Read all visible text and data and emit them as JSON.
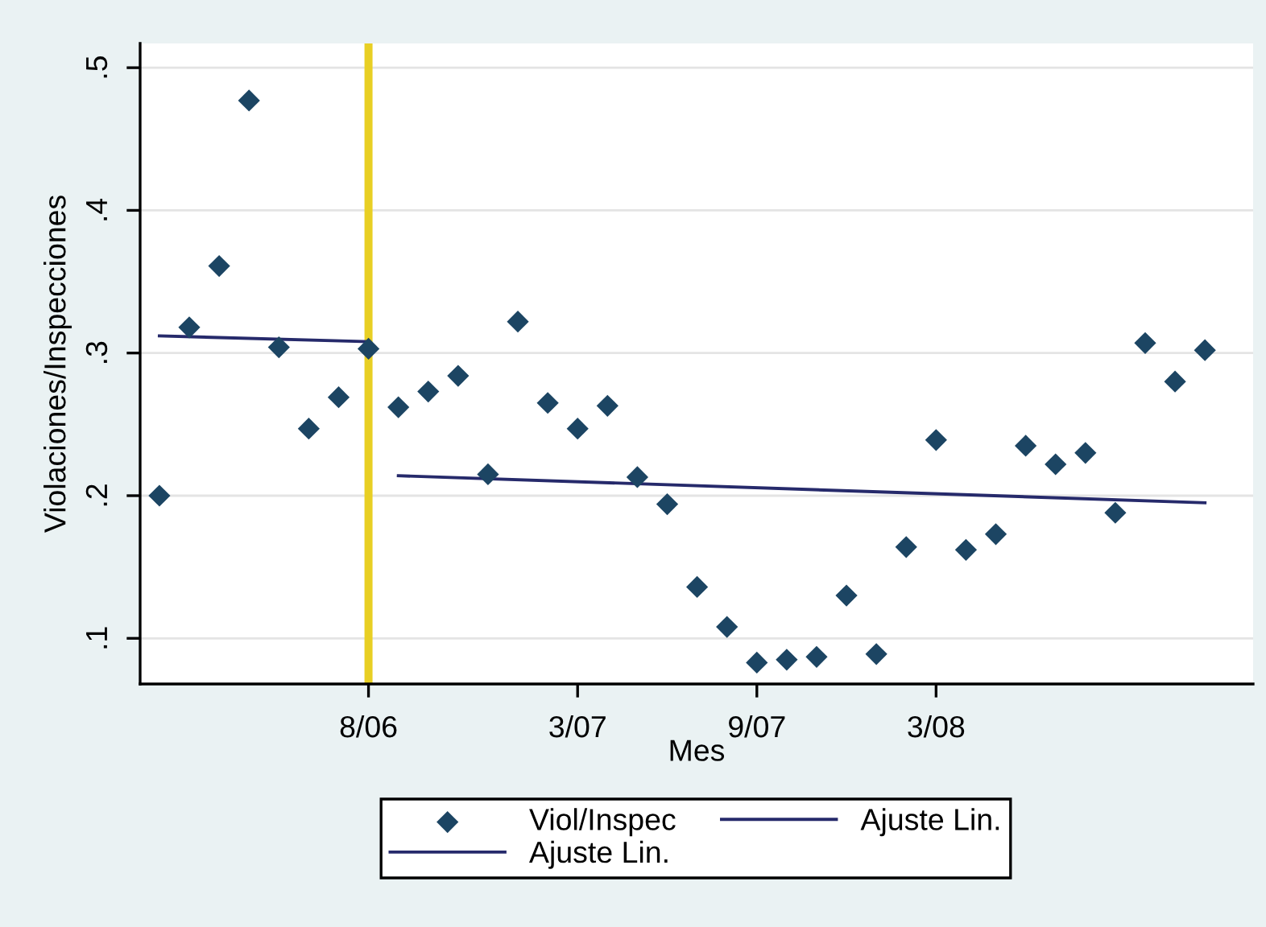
{
  "chart_data": {
    "type": "scatter",
    "xlabel": "Mes",
    "ylabel": "Violaciones/Inspecciones",
    "series": [
      {
        "name": "Viol/Inspec",
        "marker": "diamond",
        "color": "#1c4563",
        "x": [
          "2006-01",
          "2006-02",
          "2006-03",
          "2006-04",
          "2006-05",
          "2006-06",
          "2006-07",
          "2006-08",
          "2006-09",
          "2006-10",
          "2006-11",
          "2006-12",
          "2007-01",
          "2007-02",
          "2007-03",
          "2007-04",
          "2007-05",
          "2007-06",
          "2007-07",
          "2007-08",
          "2007-09",
          "2007-10",
          "2007-11",
          "2007-12",
          "2008-01",
          "2008-02",
          "2008-03",
          "2008-04",
          "2008-05",
          "2008-06",
          "2008-07",
          "2008-08",
          "2008-09",
          "2008-10",
          "2008-11",
          "2008-12"
        ],
        "values": [
          0.2,
          0.318,
          0.361,
          0.477,
          0.304,
          0.247,
          0.269,
          0.303,
          0.262,
          0.273,
          0.284,
          0.215,
          0.322,
          0.265,
          0.247,
          0.263,
          0.213,
          0.194,
          0.136,
          0.108,
          0.083,
          0.085,
          0.087,
          0.13,
          0.089,
          0.164,
          0.239,
          0.162,
          0.173,
          0.235,
          0.222,
          0.23,
          0.188,
          0.307,
          0.28,
          0.302
        ]
      },
      {
        "name": "Ajuste Lin.",
        "type": "line",
        "line_style": "solid",
        "color": "#262a6b",
        "x": [
          "2006-01",
          "2006-08"
        ],
        "values": [
          0.312,
          0.308
        ]
      },
      {
        "name": "Ajuste Lin.",
        "type": "line",
        "line_style": "solid",
        "color": "#262a6b",
        "x": [
          "2006-09",
          "2008-12"
        ],
        "values": [
          0.214,
          0.195
        ]
      }
    ],
    "xlim": [
      "2005-12-12",
      "2009-01-20"
    ],
    "xticks": [
      {
        "value": "2006-08",
        "label": "8/06"
      },
      {
        "value": "2007-03",
        "label": "3/07"
      },
      {
        "value": "2007-09",
        "label": "9/07"
      },
      {
        "value": "2008-03",
        "label": "3/08"
      }
    ],
    "ylim": [
      0.068,
      0.517
    ],
    "yticks": [
      {
        "value": 0.1,
        "label": ".1"
      },
      {
        "value": 0.2,
        "label": ".2"
      },
      {
        "value": 0.3,
        "label": ".3"
      },
      {
        "value": 0.4,
        "label": ".4"
      },
      {
        "value": 0.5,
        "label": ".5"
      }
    ],
    "ref_lines": [
      {
        "axis": "x",
        "value": "2006-08",
        "color": "#e8cf24"
      }
    ],
    "grid": "y",
    "legend": "bottom"
  }
}
